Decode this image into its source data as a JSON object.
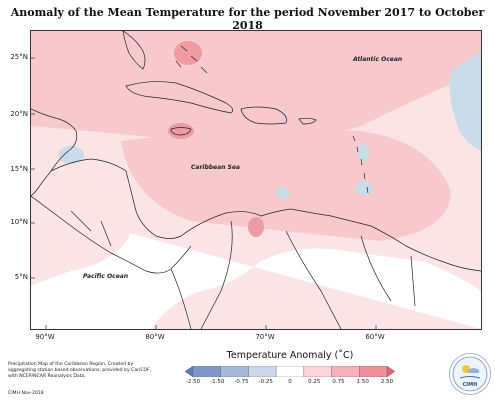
{
  "title": "Anomaly of the Mean Temperature for the period November 2017 to October 2018",
  "map": {
    "latitude_labels": [
      "25°N",
      "20°N",
      "15°N",
      "10°N",
      "5°N"
    ],
    "longitude_labels": [
      "90°W",
      "80°W",
      "70°W",
      "60°W"
    ],
    "place_labels": {
      "atlantic": "Atlantic Ocean",
      "caribbean": "Caribbean Sea",
      "pacific": "Pacific Ocean"
    },
    "colors": {
      "strong_warm": "#f09aa2",
      "warm": "#f7c9cd",
      "slight_warm": "#fbe4e6",
      "slight_cool": "#c9dce8",
      "neutral": "#ffffff"
    }
  },
  "legend": {
    "title": "Temperature Anomaly (˚C)",
    "labels": [
      "-2.50",
      "-1.50",
      "-0.75",
      "-0.25",
      "0",
      "0.25",
      "0.75",
      "1.50",
      "2.50"
    ],
    "colors": [
      "#5b78b8",
      "#7f96c8",
      "#a7b8d8",
      "#cdd9ea",
      "#ffffff",
      "#fbd5d8",
      "#f6b2b8",
      "#ef8f97",
      "#e7636f"
    ]
  },
  "footer": {
    "note": "Precipitation Map of the Caribbean Region. Created by aggregating station based observations, provided by CariCOF, with NCEP/NCAR Reanalysis Data.",
    "credit": "CIMH Nov-2018"
  },
  "logo": {
    "text": "CIMH"
  }
}
